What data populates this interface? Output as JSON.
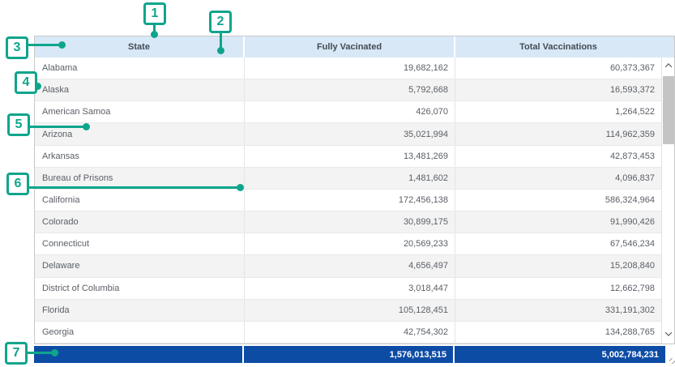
{
  "colors": {
    "accent_teal": "#0fa58c",
    "header_bg": "#d8e8f7",
    "total_row_bg": "#0d4ca5",
    "alt_row_bg": "#f3f3f3"
  },
  "table": {
    "columns": [
      {
        "label": "State"
      },
      {
        "label": "Fully Vacinated"
      },
      {
        "label": "Total Vaccinations"
      }
    ],
    "rows": [
      {
        "state": "Alabama",
        "fully_vaccinated": "19,682,162",
        "total_vaccinations": "60,373,367"
      },
      {
        "state": "Alaska",
        "fully_vaccinated": "5,792,668",
        "total_vaccinations": "16,593,372"
      },
      {
        "state": "American Samoa",
        "fully_vaccinated": "426,070",
        "total_vaccinations": "1,264,522"
      },
      {
        "state": "Arizona",
        "fully_vaccinated": "35,021,994",
        "total_vaccinations": "114,962,359"
      },
      {
        "state": "Arkansas",
        "fully_vaccinated": "13,481,269",
        "total_vaccinations": "42,873,453"
      },
      {
        "state": "Bureau of Prisons",
        "fully_vaccinated": "1,481,602",
        "total_vaccinations": "4,096,837"
      },
      {
        "state": "California",
        "fully_vaccinated": "172,456,138",
        "total_vaccinations": "586,324,964"
      },
      {
        "state": "Colorado",
        "fully_vaccinated": "30,899,175",
        "total_vaccinations": "91,990,426"
      },
      {
        "state": "Connecticut",
        "fully_vaccinated": "20,569,233",
        "total_vaccinations": "67,546,234"
      },
      {
        "state": "Delaware",
        "fully_vaccinated": "4,656,497",
        "total_vaccinations": "15,208,840"
      },
      {
        "state": "District of Columbia",
        "fully_vaccinated": "3,018,447",
        "total_vaccinations": "12,662,798"
      },
      {
        "state": "Florida",
        "fully_vaccinated": "105,128,451",
        "total_vaccinations": "331,191,302"
      },
      {
        "state": "Georgia",
        "fully_vaccinated": "42,754,302",
        "total_vaccinations": "134,288,765"
      }
    ],
    "totals": {
      "fully_vaccinated": "1,576,013,515",
      "total_vaccinations": "5,002,784,231"
    }
  },
  "scrollbar": {
    "up_icon": "chevron-up",
    "down_icon": "chevron-down"
  },
  "callouts": [
    {
      "label": "1"
    },
    {
      "label": "2"
    },
    {
      "label": "3"
    },
    {
      "label": "4"
    },
    {
      "label": "5"
    },
    {
      "label": "6"
    },
    {
      "label": "7"
    }
  ]
}
